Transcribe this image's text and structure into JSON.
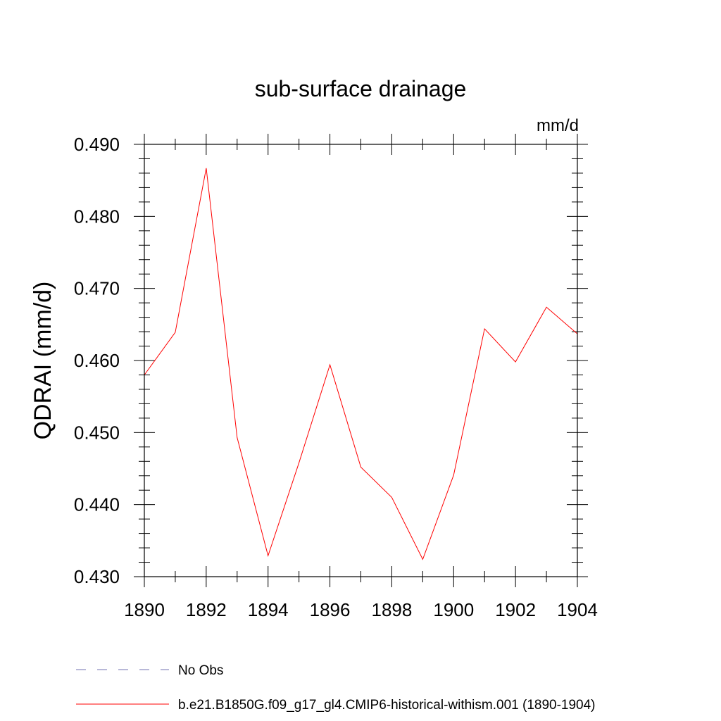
{
  "chart_data": {
    "type": "line",
    "title": "sub-surface drainage",
    "units_label": "mm/d",
    "ylabel": "QDRAI  (mm/d)",
    "xlabel": "",
    "xlim": [
      1890,
      1904
    ],
    "ylim": [
      0.43,
      0.49
    ],
    "x_ticks": [
      1890,
      1892,
      1894,
      1896,
      1898,
      1900,
      1902,
      1904
    ],
    "x_tick_labels": [
      "1890",
      "1892",
      "1894",
      "1896",
      "1898",
      "1900",
      "1902",
      "1904"
    ],
    "y_ticks": [
      0.43,
      0.44,
      0.45,
      0.46,
      0.47,
      0.48,
      0.49
    ],
    "y_tick_labels": [
      "0.430",
      "0.440",
      "0.450",
      "0.460",
      "0.470",
      "0.480",
      "0.490"
    ],
    "grid": false,
    "legend_position": "bottom",
    "x": [
      1890,
      1891,
      1892,
      1893,
      1894,
      1895,
      1896,
      1897,
      1898,
      1899,
      1900,
      1901,
      1902,
      1903,
      1904
    ],
    "series": [
      {
        "name": "b.e21.B1850G.f09_g17_gl4.CMIP6-historical-withism.001 (1890-1904)",
        "color": "#ff0000",
        "dash": "solid",
        "values": [
          0.458,
          0.4639,
          0.4867,
          0.4493,
          0.4329,
          0.4458,
          0.4594,
          0.4452,
          0.441,
          0.4324,
          0.4441,
          0.4644,
          0.4598,
          0.4674,
          0.4637
        ]
      }
    ],
    "legend": [
      {
        "label": "No Obs",
        "color": "#7070b0",
        "dash": "dashed"
      },
      {
        "label": "b.e21.B1850G.f09_g17_gl4.CMIP6-historical-withism.001 (1890-1904)",
        "color": "#ff0000",
        "dash": "solid"
      }
    ]
  }
}
